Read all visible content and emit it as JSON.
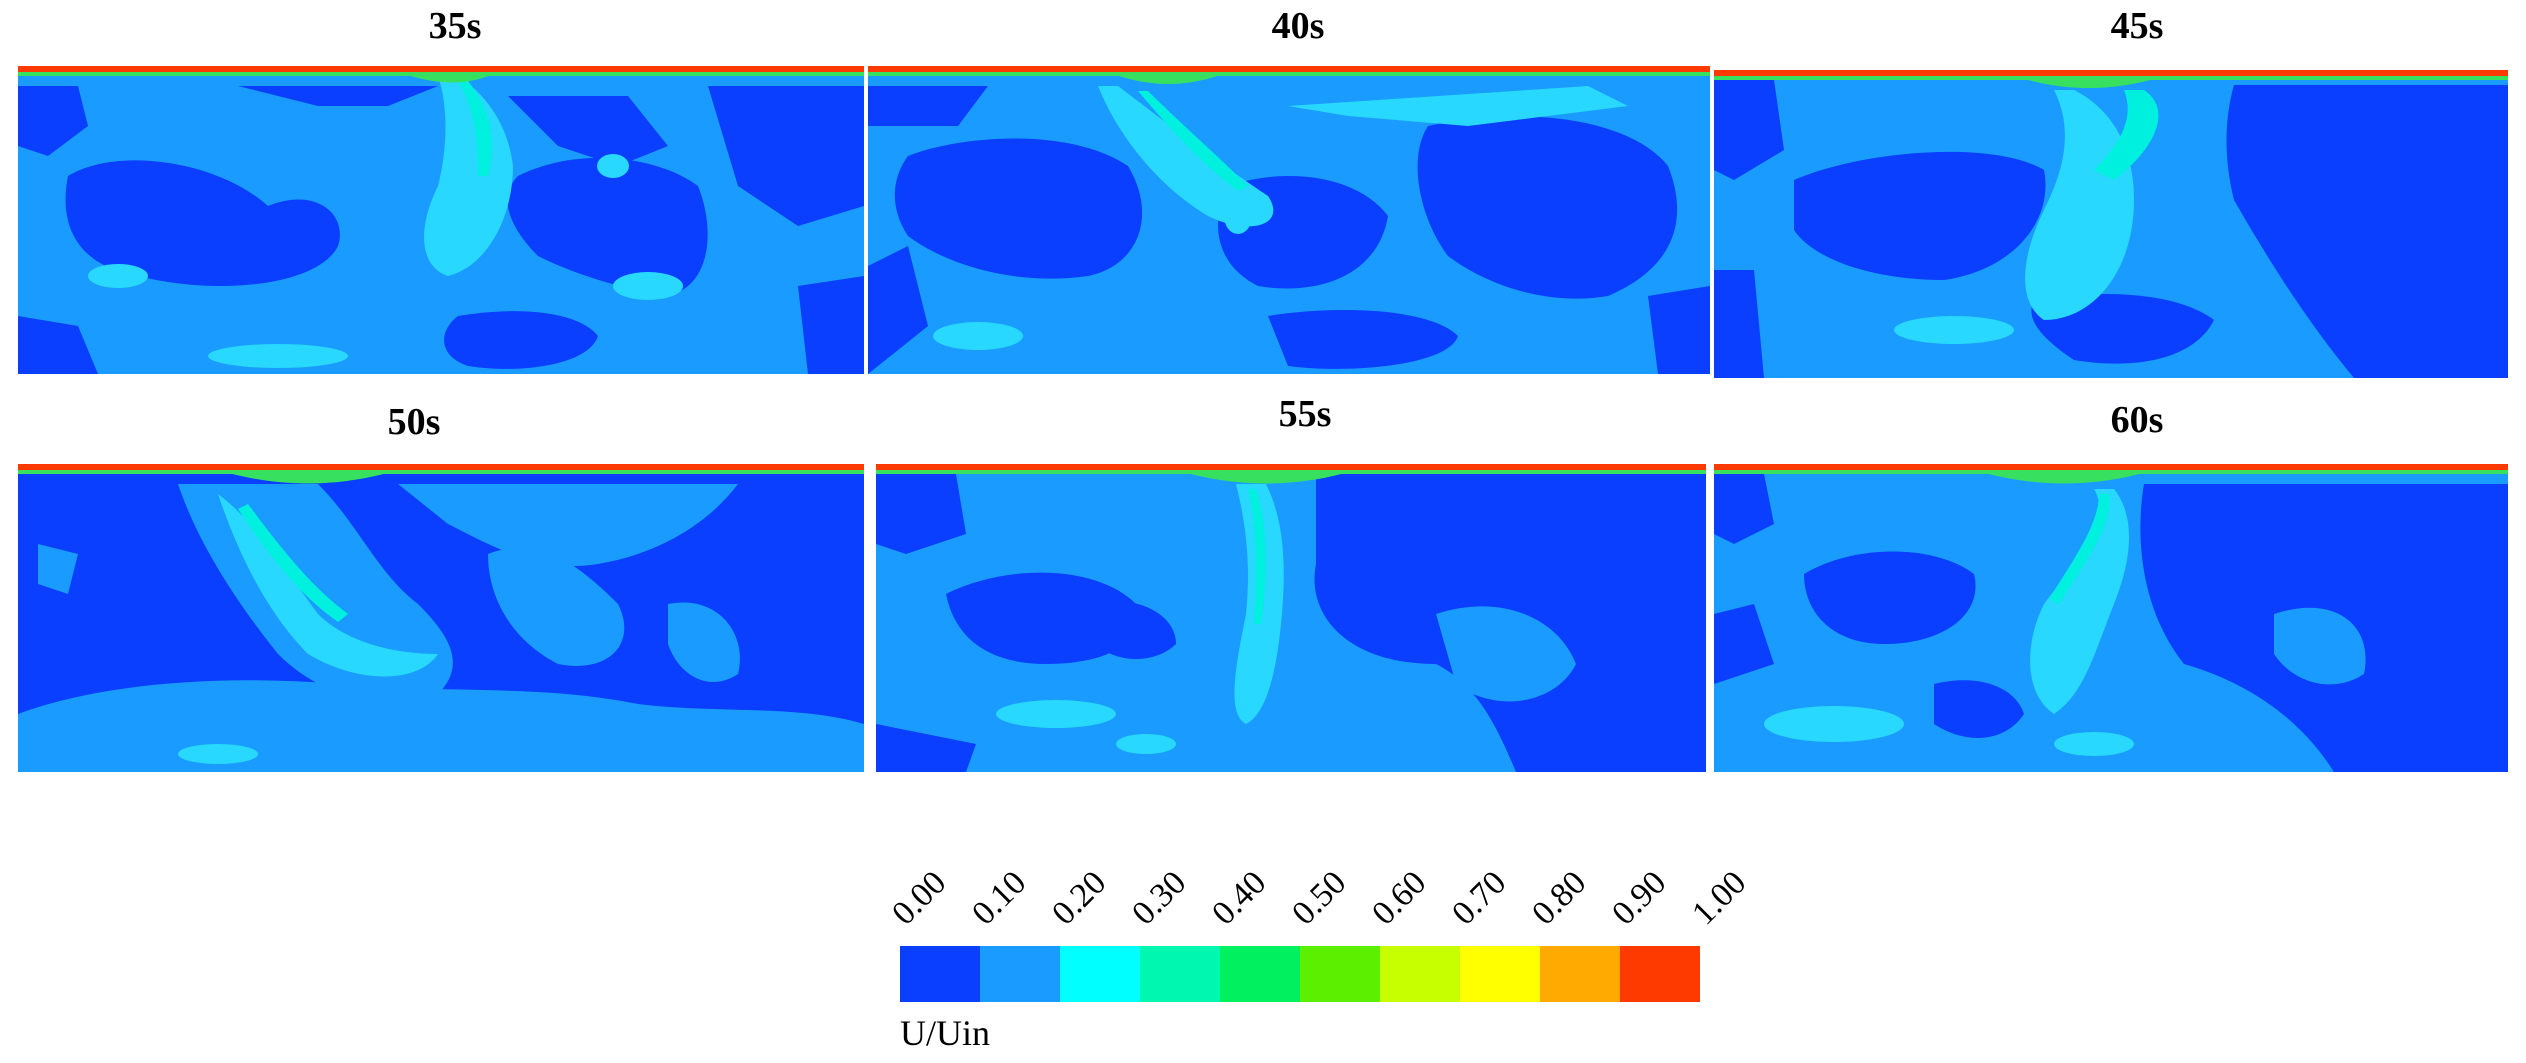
{
  "panels": [
    {
      "label": "35s"
    },
    {
      "label": "40s"
    },
    {
      "label": "45s"
    },
    {
      "label": "50s"
    },
    {
      "label": "55s"
    },
    {
      "label": "60s"
    }
  ],
  "legend": {
    "title": "U/Uin",
    "ticks": [
      "0.00",
      "0.10",
      "0.20",
      "0.30",
      "0.40",
      "0.50",
      "0.60",
      "0.70",
      "0.80",
      "0.90",
      "1.00"
    ],
    "colors": [
      "#0a3fff",
      "#1a9bff",
      "#00ffff",
      "#00f7b0",
      "#00f060",
      "#5cf000",
      "#c8ff00",
      "#ffff00",
      "#ffaa00",
      "#ff3a00"
    ]
  },
  "palette": {
    "dark": "#0a3fff",
    "mid": "#1a9bff",
    "light": "#28d8ff",
    "cyan": "#00f0e0",
    "green": "#38e060",
    "red": "#ff3a00"
  }
}
